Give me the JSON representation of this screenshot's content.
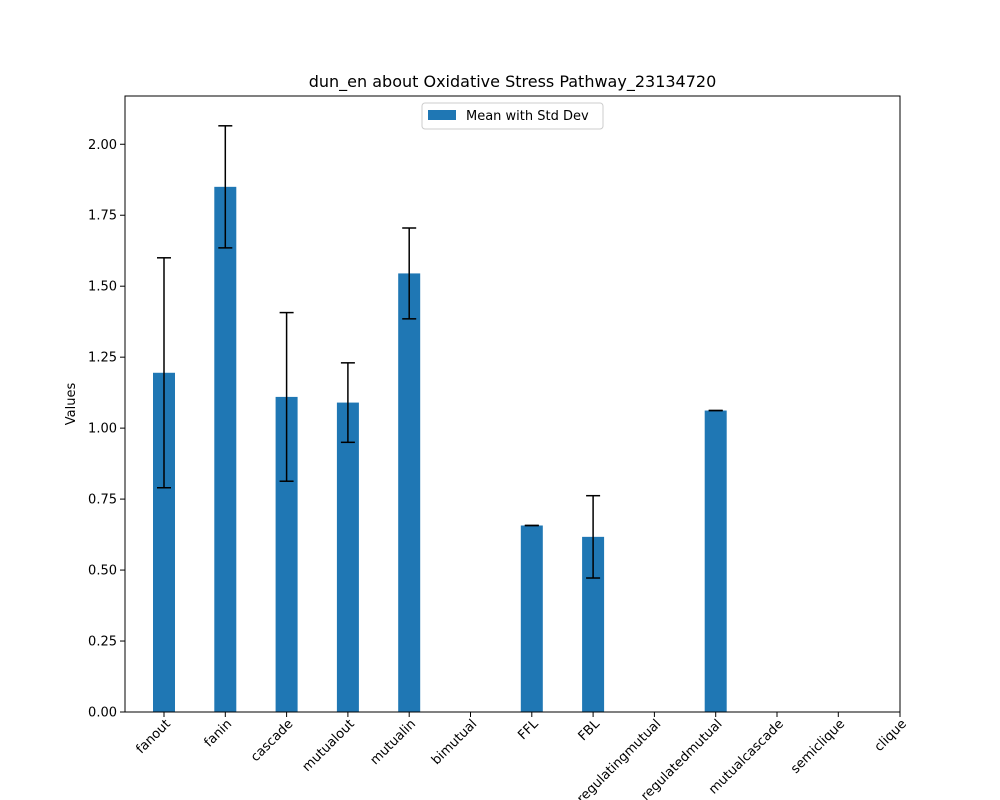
{
  "chart_data": {
    "type": "bar",
    "title": "dun_en about Oxidative Stress Pathway_23134720",
    "xlabel": "",
    "ylabel": "Values",
    "ylim": [
      0,
      2.17
    ],
    "yticks": [
      0.0,
      0.25,
      0.5,
      0.75,
      1.0,
      1.25,
      1.5,
      1.75,
      2.0
    ],
    "ytick_labels": [
      "0.00",
      "0.25",
      "0.50",
      "0.75",
      "1.00",
      "1.25",
      "1.50",
      "1.75",
      "2.00"
    ],
    "categories": [
      "fanout",
      "fanin",
      "cascade",
      "mutualout",
      "mutualin",
      "bimutual",
      "FFL",
      "FBL",
      "regulatingmutual",
      "regulatedmutual",
      "mutualcascade",
      "semiclique",
      "clique"
    ],
    "values": [
      1.195,
      1.85,
      1.11,
      1.09,
      1.545,
      0,
      0.657,
      0.617,
      0,
      1.062,
      0,
      0,
      0
    ],
    "errors": [
      0.405,
      0.215,
      0.297,
      0.14,
      0.16,
      0,
      0,
      0.145,
      0,
      0,
      0,
      0,
      0
    ],
    "legend": {
      "label": "Mean with Std Dev",
      "placement": "upper center"
    },
    "colors": {
      "bar": "#1f77b4",
      "error": "#000000"
    },
    "grid": false
  }
}
